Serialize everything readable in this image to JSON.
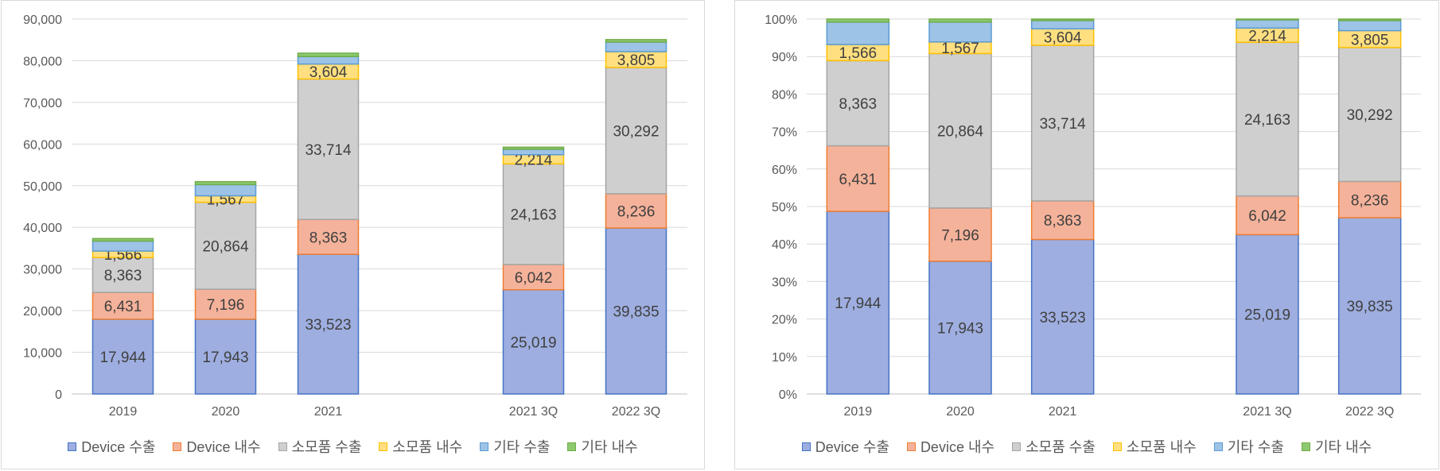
{
  "chart_data": [
    {
      "type": "bar",
      "stacked": true,
      "percent": false,
      "categories": [
        "2019",
        "2020",
        "2021",
        "",
        "2021 3Q",
        "2022 3Q"
      ],
      "ylim": [
        0,
        90000
      ],
      "yticks": [
        "0",
        "10,000",
        "20,000",
        "30,000",
        "40,000",
        "50,000",
        "60,000",
        "70,000",
        "80,000",
        "90,000"
      ],
      "legend_position": "bottom",
      "series": [
        {
          "name": "Device 수출",
          "values": [
            17944,
            17943,
            33523,
            null,
            25019,
            39835
          ],
          "labels": [
            "17,944",
            "17,943",
            "33,523",
            "",
            "25,019",
            "39,835"
          ]
        },
        {
          "name": "Device 내수",
          "values": [
            6431,
            7196,
            8363,
            null,
            6042,
            8236
          ],
          "labels": [
            "6,431",
            "7,196",
            "8,363",
            "",
            "6,042",
            "8,236"
          ]
        },
        {
          "name": "소모품 수출",
          "values": [
            8363,
            20864,
            33714,
            null,
            24163,
            30292
          ],
          "labels": [
            "8,363",
            "20,864",
            "33,714",
            "",
            "24,163",
            "30,292"
          ]
        },
        {
          "name": "소모품 내수",
          "values": [
            1566,
            1567,
            3604,
            null,
            2214,
            3805
          ],
          "labels": [
            "1,566",
            "1,567",
            "3,604",
            "",
            "2,214",
            "3,805"
          ]
        },
        {
          "name": "기타 수출",
          "values": [
            2400,
            2700,
            1800,
            null,
            1300,
            2300
          ],
          "labels": [
            "",
            "",
            "",
            "",
            "",
            ""
          ]
        },
        {
          "name": "기타 내수",
          "values": [
            600,
            700,
            800,
            null,
            500,
            600
          ],
          "labels": [
            "",
            "",
            "",
            "",
            "",
            ""
          ]
        }
      ]
    },
    {
      "type": "bar",
      "stacked": true,
      "percent": true,
      "categories": [
        "2019",
        "2020",
        "2021",
        "",
        "2021 3Q",
        "2022 3Q"
      ],
      "ylim": [
        0,
        100
      ],
      "yticks": [
        "0%",
        "10%",
        "20%",
        "30%",
        "40%",
        "50%",
        "60%",
        "70%",
        "80%",
        "90%",
        "100%"
      ],
      "legend_position": "bottom",
      "series": [
        {
          "name": "Device 수출",
          "values": [
            48.7,
            35.4,
            41.2,
            null,
            42.5,
            47.0
          ],
          "labels": [
            "17,944",
            "17,943",
            "33,523",
            "",
            "25,019",
            "39,835"
          ]
        },
        {
          "name": "Device 내수",
          "values": [
            17.5,
            14.2,
            10.3,
            null,
            10.3,
            9.7
          ],
          "labels": [
            "6,431",
            "7,196",
            "8,363",
            "",
            "6,042",
            "8,236"
          ]
        },
        {
          "name": "소모품 수출",
          "values": [
            22.7,
            41.2,
            41.5,
            null,
            41.0,
            35.7
          ],
          "labels": [
            "8,363",
            "20,864",
            "33,714",
            "",
            "24,163",
            "30,292"
          ]
        },
        {
          "name": "소모품 내수",
          "values": [
            4.3,
            3.1,
            4.4,
            null,
            3.8,
            4.5
          ],
          "labels": [
            "1,566",
            "1,567",
            "3,604",
            "",
            "2,214",
            "3,805"
          ]
        },
        {
          "name": "기타 수출",
          "values": [
            6.0,
            5.3,
            2.2,
            null,
            2.2,
            2.7
          ],
          "labels": [
            "",
            "",
            "",
            "",
            "",
            ""
          ]
        },
        {
          "name": "기타 내수",
          "values": [
            0.8,
            0.8,
            0.4,
            null,
            0.2,
            0.4
          ],
          "labels": [
            "",
            "",
            "",
            "",
            "",
            ""
          ]
        }
      ]
    }
  ],
  "colors": {
    "fills": [
      "#9eaee0",
      "#f5b29a",
      "#cfcfcf",
      "#ffdf7f",
      "#9dc3e6",
      "#8dc970"
    ],
    "strokes": [
      "#4472c4",
      "#ed7d31",
      "#a5a5a5",
      "#ffc000",
      "#5b9bd5",
      "#70ad47"
    ]
  }
}
